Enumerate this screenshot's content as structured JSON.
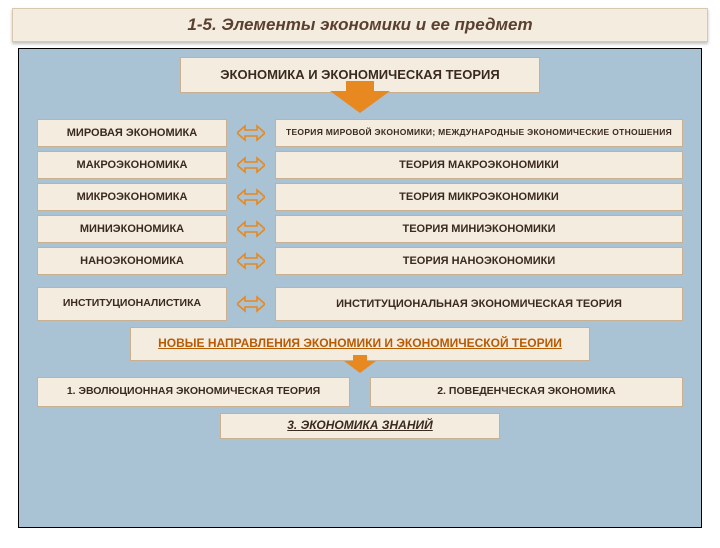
{
  "colors": {
    "panel_bg": "#a9c2d4",
    "box_bg": "#f5ece0",
    "box_border": "#c8b090",
    "arrow": "#e88820",
    "text": "#3a2a20",
    "accent_text": "#b85a00"
  },
  "title": "1-5.  Элементы экономики и ее предмет",
  "header": "ЭКОНОМИКА И ЭКОНОМИЧЕСКАЯ ТЕОРИЯ",
  "pairs": [
    {
      "left": "МИРОВАЯ ЭКОНОМИКА",
      "right": "ТЕОРИЯ МИРОВОЙ ЭКОНОМИКИ; МЕЖДУНАРОДНЫЕ ЭКОНОМИЧЕСКИЕ ОТНОШЕНИЯ",
      "small": true
    },
    {
      "left": "МАКРОЭКОНОМИКА",
      "right": "ТЕОРИЯ МАКРОЭКОНОМИКИ"
    },
    {
      "left": "МИКРОЭКОНОМИКА",
      "right": "ТЕОРИЯ МИКРОЭКОНОМИКИ"
    },
    {
      "left": "МИНИЭКОНОМИКА",
      "right": "ТЕОРИЯ МИНИЭКОНОМИКИ"
    },
    {
      "left": "НАНОЭКОНОМИКА",
      "right": "ТЕОРИЯ НАНОЭКОНОМИКИ"
    }
  ],
  "inst_pair": {
    "left": "ИНСТИТУЦИОНАЛИСТИКА",
    "right": "ИНСТИТУЦИОНАЛЬНАЯ ЭКОНОМИЧЕСКАЯ ТЕОРИЯ"
  },
  "new_directions": "НОВЫЕ НАПРАВЛЕНИЯ ЭКОНОМИКИ И ЭКОНОМИЧЕСКОЙ ТЕОРИИ",
  "bottom": {
    "b1": "1. ЭВОЛЮЦИОННАЯ ЭКОНОМИЧЕСКАЯ ТЕОРИЯ",
    "b2": "2. ПОВЕДЕНЧЕСКАЯ ЭКОНОМИКА",
    "b3": "3. ЭКОНОМИКА ЗНАНИЙ"
  }
}
